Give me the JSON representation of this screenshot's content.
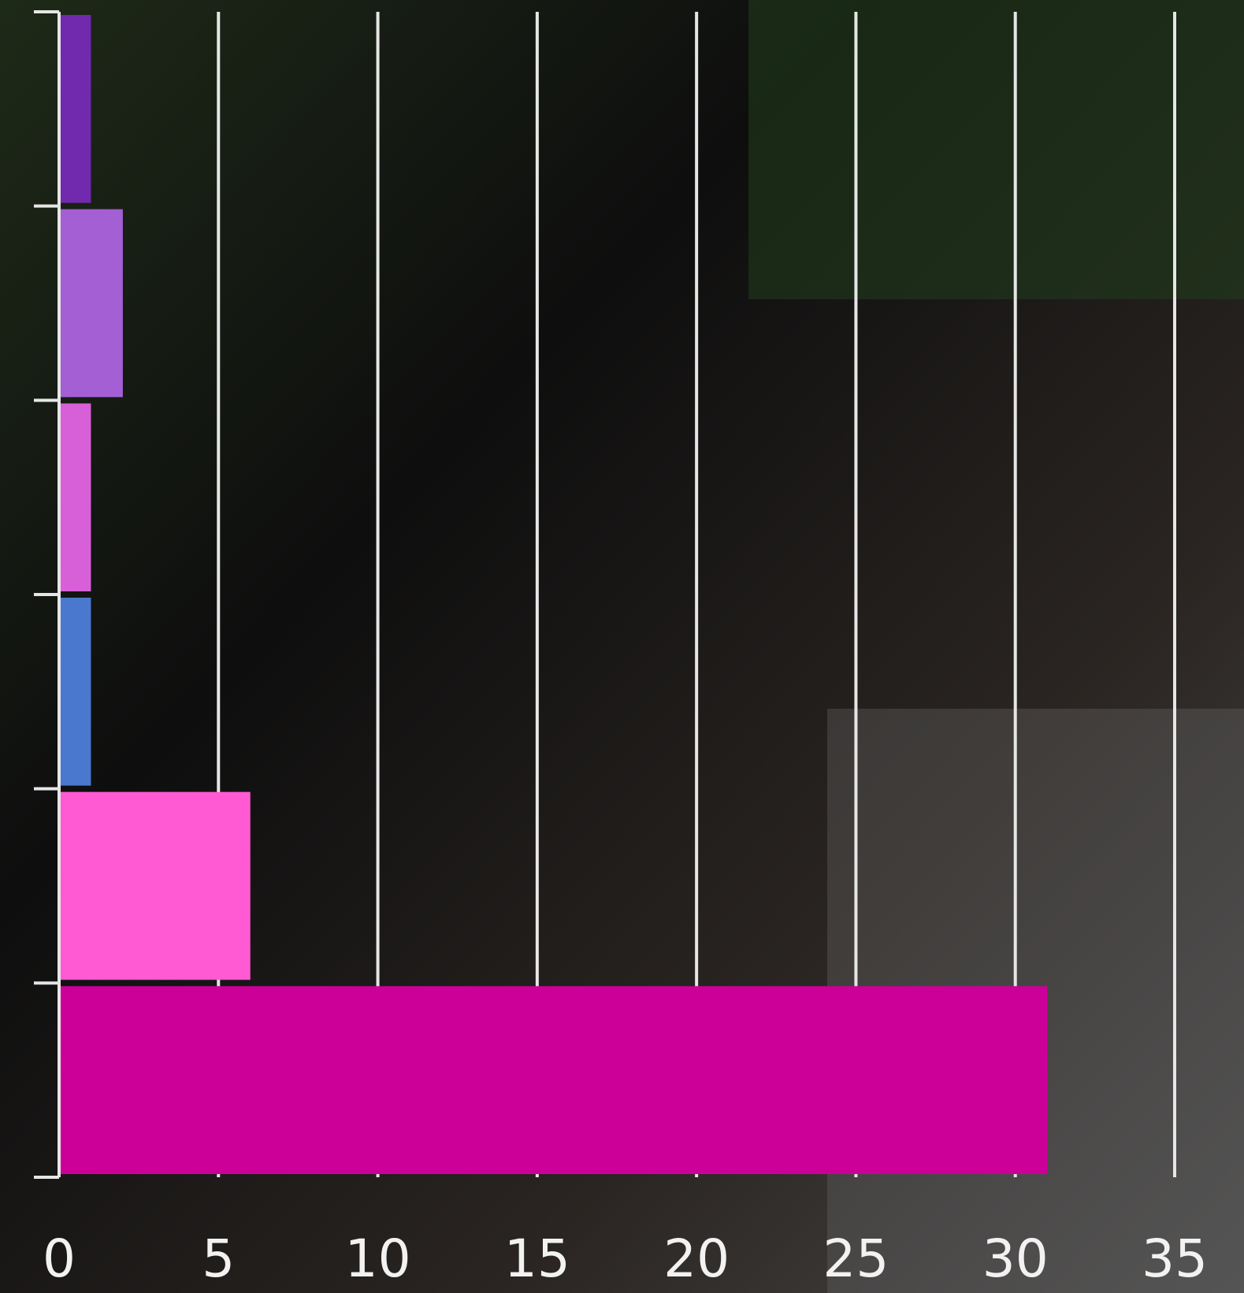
{
  "chart_data": {
    "type": "bar",
    "orientation": "horizontal",
    "categories": [
      null,
      null,
      null,
      null,
      null,
      null
    ],
    "values": [
      1,
      2,
      1,
      1,
      6,
      31
    ],
    "colors": [
      "#7129ad",
      "#a35fd3",
      "#d760d9",
      "#4a78cf",
      "#ff5ad3",
      "#cc0099"
    ],
    "xlim": [
      0,
      35
    ],
    "xticks": [
      0,
      5,
      10,
      15,
      20,
      25,
      30,
      35
    ],
    "grid": true
  }
}
